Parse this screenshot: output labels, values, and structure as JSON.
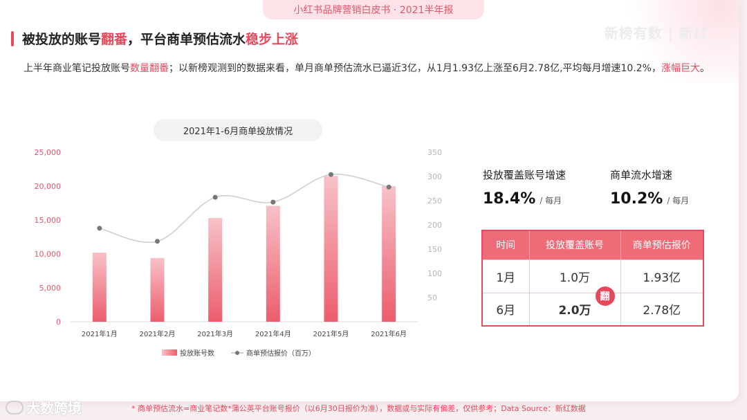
{
  "header": {
    "pill_text": "小红书品牌营销白皮书 · 2021半年报",
    "watermark": "新榜有数 | 新红"
  },
  "headline": {
    "part1": "被投放的账号",
    "part2": "翻番",
    "part3": "，平台商单预估流水",
    "part4": "稳步上涨"
  },
  "paragraph": {
    "p1": "上半年商业笔记投放账号",
    "p2": "数量翻番",
    "p3": "；以新榜观测到的数据来看，单月商单预估流水已逼近3亿，从1月1.93亿上涨至6月2.78亿,平均每月增速10.2%，",
    "p4": "涨幅巨大",
    "p5": "。"
  },
  "chart_title": "2021年1-6月商单投放情况",
  "chart_data": {
    "type": "bar",
    "categories": [
      "2021年1月",
      "2021年2月",
      "2021年3月",
      "2021年4月",
      "2021年5月",
      "2021年6月"
    ],
    "series": [
      {
        "name": "投放账号数",
        "type": "bar",
        "axis": "left",
        "values": [
          10200,
          9400,
          15300,
          17100,
          21500,
          20000
        ]
      },
      {
        "name": "商单预估报价（百万）",
        "type": "line",
        "axis": "right",
        "values": [
          193,
          166,
          257,
          247,
          304,
          278
        ]
      }
    ],
    "y_left": {
      "min": 0,
      "max": 25000,
      "ticks": [
        "0",
        "5,000",
        "10,000",
        "15,000",
        "20,000",
        "25,000"
      ]
    },
    "y_right": {
      "min": 0,
      "max": 350,
      "ticks": [
        "50",
        "100",
        "150",
        "200",
        "250",
        "300",
        "350"
      ]
    },
    "legend_position": "bottom",
    "colors": {
      "bar": "#ef6b78",
      "line": "#cfcfcf",
      "marker": "#777777"
    }
  },
  "stats": [
    {
      "label": "投放覆盖账号增速",
      "value": "18.4%",
      "unit": "/ 每月"
    },
    {
      "label": "商单流水增速",
      "value": "10.2%",
      "unit": "/ 每月"
    }
  ],
  "table": {
    "headers": [
      "时间",
      "投放覆盖账号",
      "商单预估报价"
    ],
    "rows": [
      [
        "1月",
        "1.0万",
        "1.93亿"
      ],
      [
        "6月",
        "2.0万",
        "2.78亿"
      ]
    ],
    "badge": "翻"
  },
  "footnote": "* 商单预估流水=商业笔记数*蒲公英平台账号报价（以6月30日报价为准），数据或与实际有偏差，仅供参考；Data Source：新红数据",
  "logo_text": "大数跨境",
  "colors": {
    "accent": "#e8485c",
    "pink_bg": "#fde3e7"
  }
}
